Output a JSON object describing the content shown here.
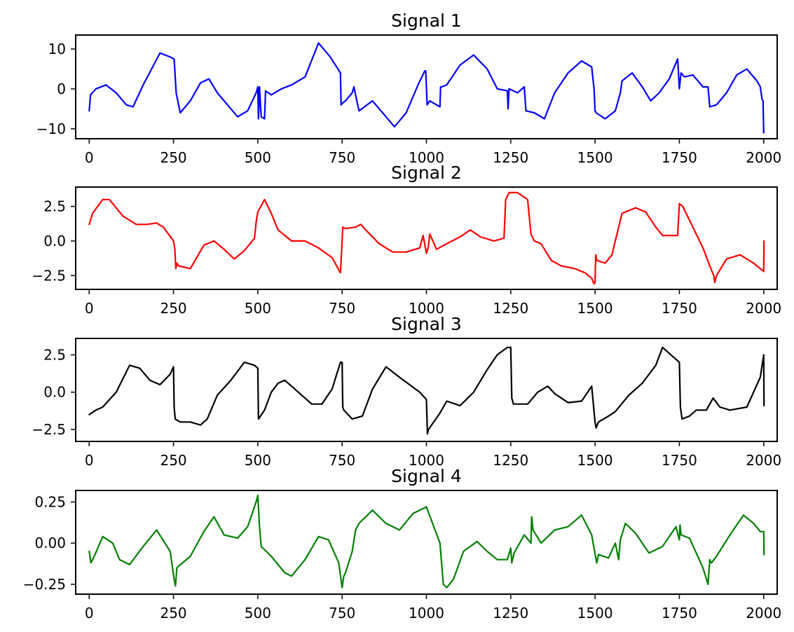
{
  "chart_data": [
    {
      "type": "line",
      "title": "Signal 1",
      "color": "#0000ff",
      "xlim": [
        -40,
        2040
      ],
      "ylim": [
        -12.5,
        13.5
      ],
      "xticks": [
        0,
        250,
        500,
        750,
        1000,
        1250,
        1500,
        1750,
        2000
      ],
      "yticks": [
        10,
        0,
        -10
      ],
      "series": [
        {
          "x": [
            0,
            4,
            20,
            50,
            80,
            110,
            130,
            160,
            210,
            240,
            252,
            258,
            270,
            300,
            330,
            355,
            380,
            410,
            440,
            470,
            495,
            500,
            502,
            505,
            510,
            520,
            523,
            540,
            570,
            600,
            640,
            680,
            715,
            745,
            747,
            752,
            760,
            780,
            785,
            800,
            840,
            880,
            905,
            940,
            975,
            995,
            998,
            1002,
            1010,
            1040,
            1042,
            1045,
            1060,
            1100,
            1140,
            1180,
            1210,
            1240,
            1242,
            1245,
            1270,
            1290,
            1295,
            1320,
            1350,
            1380,
            1420,
            1460,
            1490,
            1497,
            1500,
            1503,
            1530,
            1560,
            1575,
            1580,
            1610,
            1640,
            1665,
            1690,
            1720,
            1745,
            1750,
            1755,
            1765,
            1790,
            1820,
            1835,
            1840,
            1860,
            1890,
            1920,
            1950,
            1980,
            1990,
            1995,
            1998,
            2000
          ],
          "y": [
            -5.5,
            -1.5,
            0,
            1,
            -1,
            -4,
            -4.5,
            1,
            9,
            8,
            7.5,
            -1,
            -6,
            -3,
            1.5,
            2.5,
            -1,
            -4,
            -7,
            -5.5,
            -1,
            0.5,
            -7.5,
            0.5,
            -7,
            -7.5,
            -0.5,
            -1.5,
            0,
            1,
            3,
            11.5,
            8,
            4,
            -4,
            -3.5,
            -3,
            -1,
            0.5,
            -5.5,
            -3,
            -7,
            -9.5,
            -6,
            1,
            4.5,
            4.5,
            -4,
            -3,
            -4.5,
            0.5,
            0.5,
            1,
            6,
            8.5,
            5,
            0,
            -0.5,
            -5,
            0,
            -1,
            0.5,
            -5.5,
            -6,
            -7.5,
            -1,
            4,
            7,
            5.5,
            0,
            -5.5,
            -6,
            -7.5,
            -5.5,
            -1,
            2,
            4,
            0.5,
            -3,
            -1,
            2.5,
            7.5,
            0,
            4,
            3,
            3.5,
            0.5,
            0.5,
            -4.5,
            -4,
            -1,
            3.5,
            5,
            2,
            0.5,
            -2.5,
            -3,
            -11
          ]
        }
      ]
    },
    {
      "type": "line",
      "title": "Signal 2",
      "color": "#ff0000",
      "xlim": [
        -40,
        2040
      ],
      "ylim": [
        -3.5,
        3.9
      ],
      "xticks": [
        0,
        250,
        500,
        750,
        1000,
        1250,
        1500,
        1750,
        2000
      ],
      "yticks": [
        2.5,
        0.0,
        -2.5
      ],
      "series": [
        {
          "x": [
            0,
            10,
            40,
            60,
            100,
            140,
            170,
            200,
            220,
            250,
            254,
            257,
            260,
            265,
            300,
            340,
            370,
            400,
            430,
            460,
            490,
            496,
            500,
            520,
            540,
            560,
            600,
            640,
            680,
            720,
            745,
            748,
            752,
            760,
            790,
            805,
            820,
            860,
            900,
            940,
            980,
            990,
            1000,
            1005,
            1010,
            1030,
            1060,
            1100,
            1130,
            1160,
            1200,
            1230,
            1235,
            1245,
            1270,
            1300,
            1310,
            1320,
            1340,
            1370,
            1400,
            1440,
            1470,
            1490,
            1497,
            1500,
            1502,
            1505,
            1530,
            1550,
            1560,
            1580,
            1620,
            1650,
            1680,
            1700,
            1720,
            1745,
            1750,
            1760,
            1780,
            1800,
            1820,
            1840,
            1852,
            1855,
            1860,
            1890,
            1930,
            1970,
            2000,
            2001
          ],
          "y": [
            1.2,
            2.0,
            3.0,
            3.0,
            1.8,
            1.2,
            1.2,
            1.3,
            1.0,
            0.0,
            -0.6,
            -2.0,
            -1.6,
            -1.8,
            -2.0,
            -0.3,
            0.0,
            -0.6,
            -1.3,
            -0.7,
            0.2,
            1.5,
            2.1,
            3.0,
            2.0,
            0.8,
            0.0,
            0.0,
            -0.5,
            -1.2,
            -2.3,
            -1.0,
            1.0,
            0.9,
            1.0,
            1.2,
            0.8,
            -0.2,
            -0.8,
            -0.8,
            -0.5,
            0.4,
            -0.9,
            -0.5,
            0.5,
            -0.6,
            -0.2,
            0.3,
            0.8,
            0.3,
            0.0,
            0.2,
            3.0,
            3.5,
            3.5,
            3.0,
            0.5,
            0.0,
            -0.2,
            -1.4,
            -1.8,
            -2.0,
            -2.3,
            -2.7,
            -3.1,
            -3.0,
            -1.0,
            -1.4,
            -1.6,
            -1.0,
            0.0,
            2.0,
            2.4,
            2.1,
            1.0,
            0.4,
            0.4,
            0.4,
            2.7,
            2.5,
            1.5,
            0.5,
            -0.5,
            -1.8,
            -2.5,
            -3.0,
            -2.5,
            -1.3,
            -1.0,
            -1.6,
            -2.2,
            0.0
          ]
        }
      ]
    },
    {
      "type": "line",
      "title": "Signal 3",
      "color": "#000000",
      "xlim": [
        -40,
        2040
      ],
      "ylim": [
        -3.3,
        3.6
      ],
      "xticks": [
        0,
        250,
        500,
        750,
        1000,
        1250,
        1500,
        1750,
        2000
      ],
      "yticks": [
        2.5,
        0.0,
        -2.5
      ],
      "series": [
        {
          "x": [
            0,
            20,
            40,
            80,
            120,
            150,
            180,
            210,
            240,
            250,
            252,
            255,
            270,
            300,
            330,
            350,
            380,
            420,
            460,
            490,
            500,
            502,
            505,
            520,
            540,
            560,
            580,
            620,
            660,
            690,
            720,
            745,
            750,
            752,
            755,
            780,
            810,
            840,
            880,
            920,
            950,
            980,
            1000,
            1003,
            1006,
            1040,
            1060,
            1100,
            1140,
            1180,
            1210,
            1240,
            1250,
            1253,
            1258,
            1280,
            1300,
            1330,
            1360,
            1380,
            1420,
            1460,
            1490,
            1500,
            1503,
            1510,
            1540,
            1560,
            1600,
            1640,
            1680,
            1700,
            1720,
            1750,
            1753,
            1758,
            1780,
            1800,
            1830,
            1850,
            1870,
            1900,
            1950,
            1990,
            2000,
            2001
          ],
          "y": [
            -1.5,
            -1.2,
            -1.0,
            0.0,
            1.8,
            1.6,
            0.8,
            0.5,
            1.2,
            1.7,
            -1.0,
            -1.8,
            -2.0,
            -2.0,
            -2.2,
            -1.8,
            -0.2,
            0.8,
            2.0,
            1.8,
            1.6,
            -1.8,
            -1.7,
            -1.2,
            0.0,
            0.6,
            0.8,
            0.0,
            -0.8,
            -0.8,
            0.2,
            2.0,
            2.0,
            -1.0,
            -1.2,
            -1.8,
            -1.6,
            0.2,
            1.7,
            1.0,
            0.5,
            0.0,
            -0.5,
            -2.8,
            -2.5,
            -1.4,
            -0.6,
            -0.9,
            0.0,
            1.5,
            2.5,
            3.0,
            3.0,
            -0.4,
            -0.8,
            -0.8,
            -0.8,
            0.0,
            0.4,
            -0.1,
            -0.7,
            -0.6,
            0.4,
            -2.0,
            -2.4,
            -2.0,
            -1.6,
            -1.3,
            -0.2,
            0.6,
            1.8,
            3.0,
            2.6,
            2.0,
            -1.0,
            -1.8,
            -1.6,
            -1.2,
            -1.2,
            -0.4,
            -1.0,
            -1.2,
            -1.0,
            1.0,
            2.5,
            -0.9
          ]
        }
      ]
    },
    {
      "type": "line",
      "title": "Signal 4",
      "color": "#008000",
      "xlim": [
        -40,
        2040
      ],
      "ylim": [
        -0.31,
        0.32
      ],
      "xticks": [
        0,
        250,
        500,
        750,
        1000,
        1250,
        1500,
        1750,
        2000
      ],
      "yticks": [
        0.25,
        0.0,
        -0.25
      ],
      "series": [
        {
          "x": [
            0,
            5,
            15,
            40,
            70,
            90,
            120,
            160,
            200,
            240,
            252,
            256,
            260,
            265,
            300,
            340,
            370,
            400,
            440,
            470,
            495,
            500,
            505,
            510,
            540,
            580,
            600,
            640,
            680,
            710,
            740,
            750,
            755,
            760,
            780,
            790,
            800,
            840,
            880,
            920,
            960,
            1000,
            1040,
            1050,
            1060,
            1080,
            1110,
            1150,
            1180,
            1210,
            1240,
            1250,
            1253,
            1260,
            1290,
            1310,
            1312,
            1316,
            1340,
            1380,
            1420,
            1460,
            1490,
            1505,
            1510,
            1540,
            1560,
            1570,
            1575,
            1590,
            1620,
            1660,
            1700,
            1740,
            1750,
            1752,
            1755,
            1780,
            1820,
            1835,
            1840,
            1845,
            1860,
            1900,
            1940,
            1970,
            1990,
            2000,
            2001
          ],
          "y": [
            -0.05,
            -0.12,
            -0.08,
            0.04,
            0.0,
            -0.1,
            -0.13,
            -0.02,
            0.08,
            -0.05,
            -0.22,
            -0.26,
            -0.15,
            -0.14,
            -0.08,
            0.07,
            0.16,
            0.05,
            0.03,
            0.1,
            0.25,
            0.29,
            0.1,
            -0.02,
            -0.08,
            -0.18,
            -0.2,
            -0.1,
            0.04,
            0.02,
            -0.12,
            -0.27,
            -0.2,
            -0.18,
            -0.05,
            0.08,
            0.12,
            0.2,
            0.12,
            0.08,
            0.18,
            0.22,
            0.0,
            -0.25,
            -0.27,
            -0.22,
            -0.05,
            0.01,
            -0.05,
            -0.1,
            -0.1,
            -0.03,
            -0.12,
            -0.06,
            0.05,
            0.0,
            0.16,
            0.08,
            0.0,
            0.08,
            0.1,
            0.17,
            0.05,
            -0.12,
            -0.07,
            -0.09,
            0.0,
            -0.1,
            0.02,
            0.12,
            0.06,
            -0.06,
            -0.02,
            0.1,
            0.02,
            0.11,
            0.05,
            0.03,
            -0.15,
            -0.25,
            -0.1,
            -0.12,
            -0.08,
            0.05,
            0.17,
            0.12,
            0.07,
            0.07,
            -0.07
          ]
        }
      ]
    }
  ]
}
